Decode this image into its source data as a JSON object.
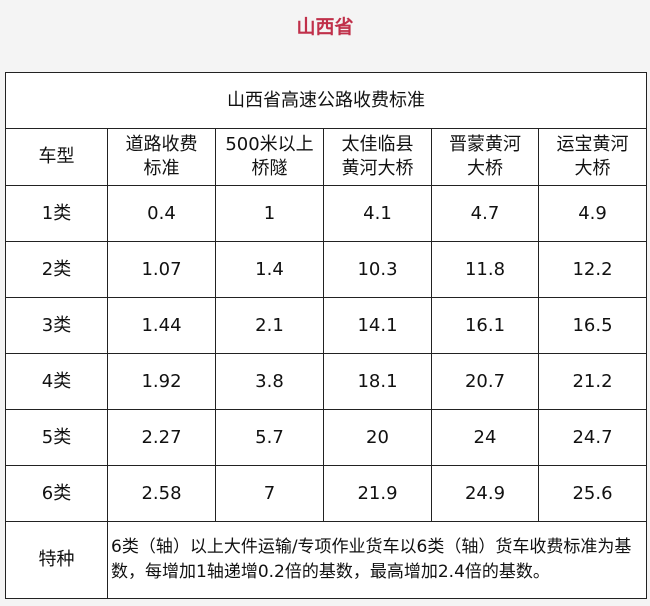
{
  "page_title": "山西省",
  "table": {
    "caption": "山西省高速公路收费标准",
    "headers": [
      [
        "车型"
      ],
      [
        "道路收费",
        "标准"
      ],
      [
        "500米以上",
        "桥隧"
      ],
      [
        "太佳临县",
        "黄河大桥"
      ],
      [
        "晋蒙黄河",
        "大桥"
      ],
      [
        "运宝黄河",
        "大桥"
      ]
    ],
    "rows": [
      [
        "1类",
        "0.4",
        "1",
        "4.1",
        "4.7",
        "4.9"
      ],
      [
        "2类",
        "1.07",
        "1.4",
        "10.3",
        "11.8",
        "12.2"
      ],
      [
        "3类",
        "1.44",
        "2.1",
        "14.1",
        "16.1",
        "16.5"
      ],
      [
        "4类",
        "1.92",
        "3.8",
        "18.1",
        "20.7",
        "21.2"
      ],
      [
        "5类",
        "2.27",
        "5.7",
        "20",
        "24",
        "24.7"
      ],
      [
        "6类",
        "2.58",
        "7",
        "21.9",
        "24.9",
        "25.6"
      ]
    ],
    "special": {
      "label": "特种",
      "note": "6类（轴）以上大件运输/专项作业货车以6类（轴）货车收费标准为基数，每增加1轴递增0.2倍的基数，最高增加2.4倍的基数。"
    }
  },
  "colors": {
    "title": "#c0304a"
  }
}
